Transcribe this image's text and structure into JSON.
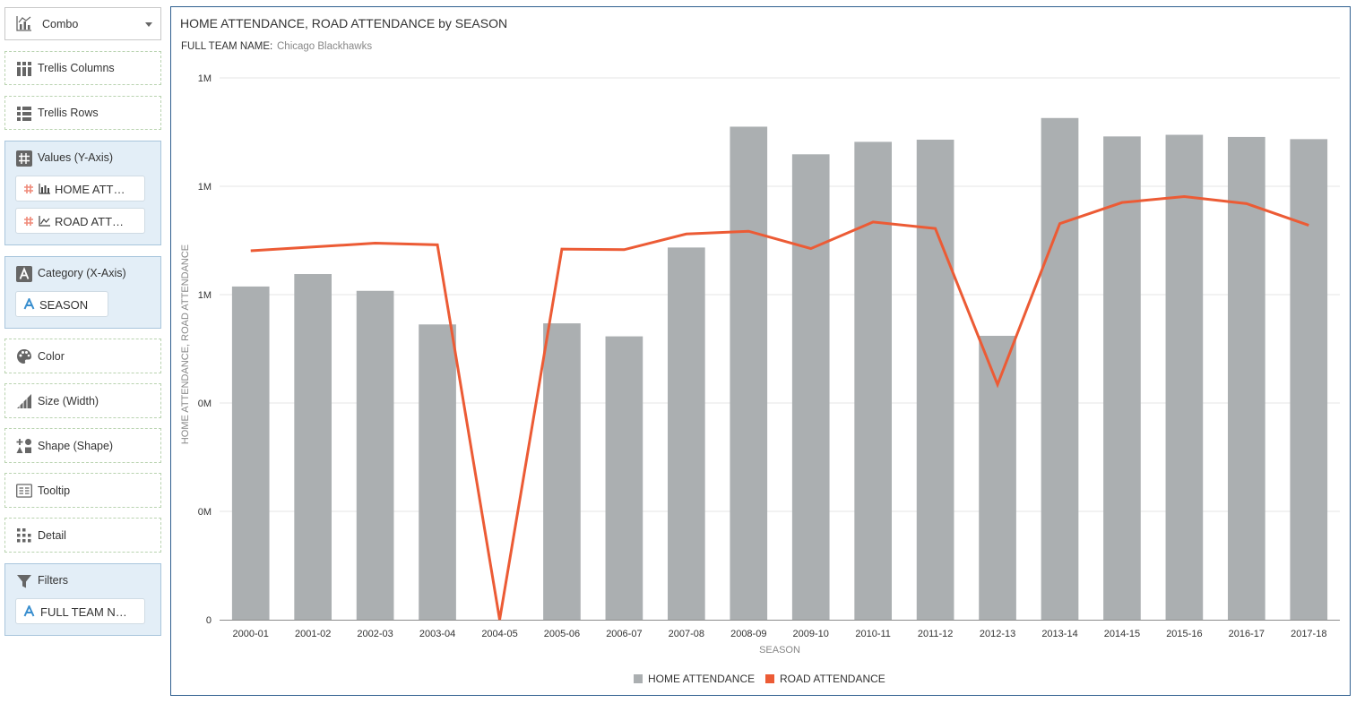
{
  "sidebar": {
    "chart_type": "Combo",
    "trellis_columns": "Trellis Columns",
    "trellis_rows": "Trellis Rows",
    "values_title": "Values (Y-Axis)",
    "values_pills": [
      "HOME ATT…",
      "ROAD ATT…"
    ],
    "category_title": "Category (X-Axis)",
    "category_pill": "SEASON",
    "color": "Color",
    "size": "Size (Width)",
    "shape": "Shape (Shape)",
    "tooltip": "Tooltip",
    "detail": "Detail",
    "filters_title": "Filters",
    "filters_pill": "FULL TEAM N…"
  },
  "filter": {
    "label": "FULL TEAM NAME:",
    "value": "Chicago Blackhawks"
  },
  "colors": {
    "bar": "#abafb1",
    "line": "#ec5b35",
    "frame": "#2f5f8f",
    "panel_fill": "#e3eef7"
  },
  "chart_data": {
    "type": "bar",
    "title": "HOME ATTENDANCE, ROAD ATTENDANCE by SEASON",
    "xlabel": "SEASON",
    "ylabel": "HOME ATTENDANCE, ROAD ATTENDANCE",
    "y_ticks": [
      "0",
      "0M",
      "0M",
      "1M",
      "1M",
      "1M"
    ],
    "ylim": [
      0,
      1000000
    ],
    "categories": [
      "2000-01",
      "2001-02",
      "2002-03",
      "2003-04",
      "2004-05",
      "2005-06",
      "2006-07",
      "2007-08",
      "2008-09",
      "2009-10",
      "2010-11",
      "2011-12",
      "2012-13",
      "2013-14",
      "2014-15",
      "2015-16",
      "2016-17",
      "2017-18"
    ],
    "series": [
      {
        "name": "HOME ATTENDANCE",
        "type": "bar",
        "values": [
          615000,
          638000,
          607000,
          545000,
          0,
          547000,
          523000,
          687000,
          910000,
          859000,
          882000,
          886000,
          524000,
          926000,
          892000,
          895000,
          891000,
          887000
        ]
      },
      {
        "name": "ROAD ATTENDANCE",
        "type": "line",
        "values": [
          681000,
          688000,
          695000,
          692000,
          0,
          684000,
          683000,
          712000,
          717000,
          685000,
          734000,
          722000,
          434000,
          731000,
          770000,
          781000,
          768000,
          728000
        ]
      }
    ],
    "legend": "bottom-center",
    "grid": true
  }
}
